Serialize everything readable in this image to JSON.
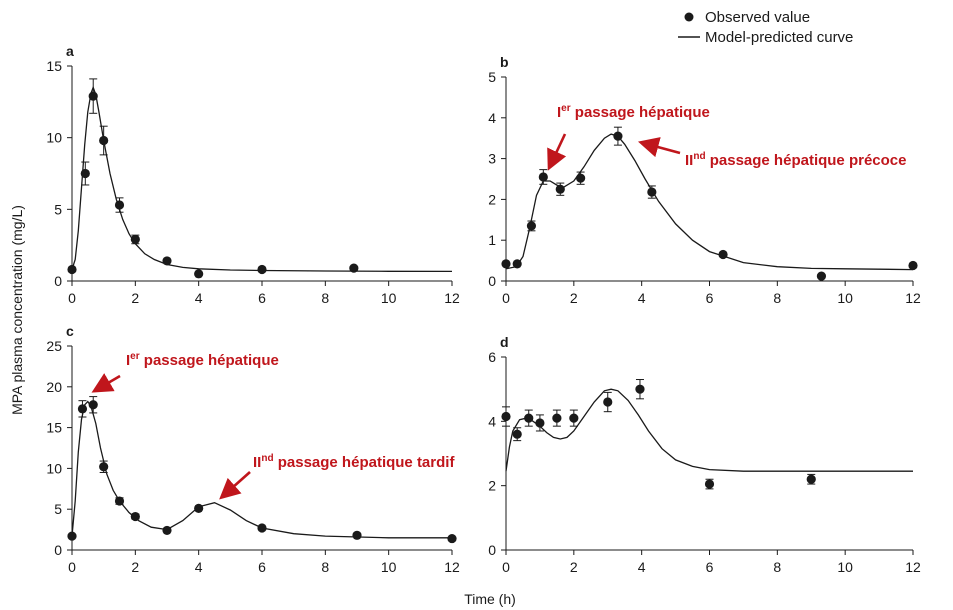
{
  "legend": {
    "observed_label": "Observed value",
    "model_label": "Model-predicted curve"
  },
  "axes": {
    "ylabel": "MPA plasma concentration (mg/L)",
    "xlabel": "Time (h)"
  },
  "colors": {
    "annotation": "#c0161c",
    "ink": "#1a1a1a"
  },
  "chart_data": [
    {
      "type": "line",
      "panel": "a",
      "xlim": [
        0,
        12
      ],
      "ylim": [
        0,
        15
      ],
      "xticks": [
        0,
        2,
        4,
        6,
        8,
        10,
        12
      ],
      "yticks": [
        0,
        5,
        10,
        15
      ],
      "observed": [
        {
          "x": 0,
          "y": 0.8,
          "err": 0
        },
        {
          "x": 0.42,
          "y": 7.5,
          "err": 0.8
        },
        {
          "x": 0.67,
          "y": 12.9,
          "err": 1.2
        },
        {
          "x": 1.0,
          "y": 9.8,
          "err": 1.0
        },
        {
          "x": 1.5,
          "y": 5.3,
          "err": 0.5
        },
        {
          "x": 2.0,
          "y": 2.9,
          "err": 0.3
        },
        {
          "x": 3.0,
          "y": 1.4,
          "err": 0
        },
        {
          "x": 4.0,
          "y": 0.5,
          "err": 0
        },
        {
          "x": 6.0,
          "y": 0.8,
          "err": 0
        },
        {
          "x": 8.9,
          "y": 0.9,
          "err": 0
        }
      ],
      "model": {
        "x": [
          0,
          0.1,
          0.2,
          0.3,
          0.4,
          0.5,
          0.6,
          0.67,
          0.75,
          0.85,
          1.0,
          1.2,
          1.4,
          1.6,
          1.8,
          2.0,
          2.3,
          2.6,
          3.0,
          3.5,
          4.0,
          5.0,
          6.0,
          8.0,
          10.0,
          12.0
        ],
        "y": [
          0.8,
          1.5,
          3.5,
          6.5,
          9.5,
          11.8,
          13.1,
          13.5,
          13.0,
          11.8,
          9.8,
          7.5,
          5.7,
          4.3,
          3.3,
          2.6,
          1.9,
          1.5,
          1.15,
          0.95,
          0.85,
          0.77,
          0.73,
          0.7,
          0.68,
          0.67
        ]
      },
      "annotations": []
    },
    {
      "type": "line",
      "panel": "b",
      "xlim": [
        0,
        12
      ],
      "ylim": [
        0,
        5
      ],
      "xticks": [
        0,
        2,
        4,
        6,
        8,
        10,
        12
      ],
      "yticks": [
        0,
        1,
        2,
        3,
        4,
        5
      ],
      "observed": [
        {
          "x": 0,
          "y": 0.42,
          "err": 0
        },
        {
          "x": 0.33,
          "y": 0.42,
          "err": 0
        },
        {
          "x": 0.75,
          "y": 1.35,
          "err": 0.12
        },
        {
          "x": 1.1,
          "y": 2.55,
          "err": 0.18
        },
        {
          "x": 1.6,
          "y": 2.25,
          "err": 0.15
        },
        {
          "x": 2.2,
          "y": 2.52,
          "err": 0.15
        },
        {
          "x": 3.3,
          "y": 3.55,
          "err": 0.22
        },
        {
          "x": 4.3,
          "y": 2.18,
          "err": 0.15
        },
        {
          "x": 6.4,
          "y": 0.65,
          "err": 0
        },
        {
          "x": 9.3,
          "y": 0.12,
          "err": 0
        },
        {
          "x": 12.0,
          "y": 0.38,
          "err": 0
        }
      ],
      "model": {
        "x": [
          0,
          0.3,
          0.5,
          0.7,
          0.9,
          1.1,
          1.3,
          1.5,
          1.7,
          2.0,
          2.3,
          2.6,
          2.9,
          3.1,
          3.3,
          3.5,
          3.8,
          4.1,
          4.5,
          5.0,
          5.5,
          6.0,
          7.0,
          8.0,
          9.0,
          10.0,
          12.0
        ],
        "y": [
          0.3,
          0.35,
          0.6,
          1.3,
          2.1,
          2.45,
          2.45,
          2.35,
          2.3,
          2.45,
          2.8,
          3.2,
          3.5,
          3.6,
          3.55,
          3.35,
          2.95,
          2.5,
          1.95,
          1.4,
          1.0,
          0.72,
          0.45,
          0.35,
          0.31,
          0.3,
          0.28
        ]
      },
      "annotations": [
        {
          "text_main": "I",
          "text_sup": "er",
          "text_rest": " passage hépatique",
          "x": 1.1,
          "y": 2.55
        },
        {
          "text_main": "II",
          "text_sup": "nd",
          "text_rest": " passage hépatique précoce",
          "x": 3.3,
          "y": 3.55
        }
      ]
    },
    {
      "type": "line",
      "panel": "c",
      "xlim": [
        0,
        12
      ],
      "ylim": [
        0,
        25
      ],
      "xticks": [
        0,
        2,
        4,
        6,
        8,
        10,
        12
      ],
      "yticks": [
        0,
        5,
        10,
        15,
        20,
        25
      ],
      "observed": [
        {
          "x": 0,
          "y": 1.7,
          "err": 0
        },
        {
          "x": 0.33,
          "y": 17.3,
          "err": 1.0
        },
        {
          "x": 0.67,
          "y": 17.8,
          "err": 1.0
        },
        {
          "x": 1.0,
          "y": 10.2,
          "err": 0.7
        },
        {
          "x": 1.5,
          "y": 6.0,
          "err": 0.4
        },
        {
          "x": 2.0,
          "y": 4.1,
          "err": 0.3
        },
        {
          "x": 3.0,
          "y": 2.4,
          "err": 0
        },
        {
          "x": 4.0,
          "y": 5.1,
          "err": 0
        },
        {
          "x": 6.0,
          "y": 2.7,
          "err": 0
        },
        {
          "x": 9.0,
          "y": 1.8,
          "err": 0
        },
        {
          "x": 12.0,
          "y": 1.4,
          "err": 0
        }
      ],
      "model": {
        "x": [
          0,
          0.1,
          0.2,
          0.3,
          0.4,
          0.5,
          0.6,
          0.75,
          0.9,
          1.1,
          1.3,
          1.5,
          1.8,
          2.1,
          2.5,
          3.0,
          3.5,
          4.0,
          4.5,
          5.0,
          5.5,
          6.0,
          7.0,
          8.0,
          10.0,
          12.0
        ],
        "y": [
          1.7,
          6.0,
          12.0,
          16.0,
          17.8,
          18.2,
          17.6,
          15.5,
          12.5,
          9.3,
          7.3,
          6.0,
          4.6,
          3.6,
          2.8,
          2.5,
          3.6,
          5.3,
          5.8,
          4.9,
          3.6,
          2.7,
          2.0,
          1.7,
          1.5,
          1.5
        ]
      },
      "annotations": [
        {
          "text_main": "I",
          "text_sup": "er",
          "text_rest": " passage hépatique",
          "x": 0.67,
          "y": 17.8
        },
        {
          "text_main": "II",
          "text_sup": "nd",
          "text_rest": " passage hépatique tardif",
          "x": 4.5,
          "y": 5.8
        }
      ]
    },
    {
      "type": "line",
      "panel": "d",
      "xlim": [
        0,
        12
      ],
      "ylim": [
        0,
        6
      ],
      "xticks": [
        0,
        2,
        4,
        6,
        8,
        10,
        12
      ],
      "yticks": [
        0,
        2,
        4,
        6
      ],
      "observed": [
        {
          "x": 0,
          "y": 4.15,
          "err": 0.3
        },
        {
          "x": 0.33,
          "y": 3.6,
          "err": 0.2
        },
        {
          "x": 0.67,
          "y": 4.1,
          "err": 0.25
        },
        {
          "x": 1.0,
          "y": 3.95,
          "err": 0.25
        },
        {
          "x": 1.5,
          "y": 4.1,
          "err": 0.25
        },
        {
          "x": 2.0,
          "y": 4.1,
          "err": 0.25
        },
        {
          "x": 3.0,
          "y": 4.6,
          "err": 0.3
        },
        {
          "x": 3.95,
          "y": 5.0,
          "err": 0.3
        },
        {
          "x": 6.0,
          "y": 2.05,
          "err": 0.15
        },
        {
          "x": 9.0,
          "y": 2.2,
          "err": 0.15
        }
      ],
      "model": {
        "x": [
          0,
          0.1,
          0.2,
          0.4,
          0.6,
          0.8,
          1.0,
          1.2,
          1.4,
          1.6,
          1.8,
          2.0,
          2.3,
          2.6,
          2.9,
          3.1,
          3.3,
          3.6,
          3.9,
          4.2,
          4.6,
          5.0,
          5.5,
          6.0,
          7.0,
          8.0,
          10.0,
          12.0
        ],
        "y": [
          2.45,
          3.2,
          3.7,
          4.05,
          4.1,
          4.0,
          3.85,
          3.65,
          3.5,
          3.45,
          3.5,
          3.7,
          4.15,
          4.6,
          4.95,
          5.0,
          4.95,
          4.65,
          4.2,
          3.7,
          3.15,
          2.8,
          2.6,
          2.5,
          2.45,
          2.45,
          2.45,
          2.45
        ]
      },
      "annotations": []
    }
  ]
}
